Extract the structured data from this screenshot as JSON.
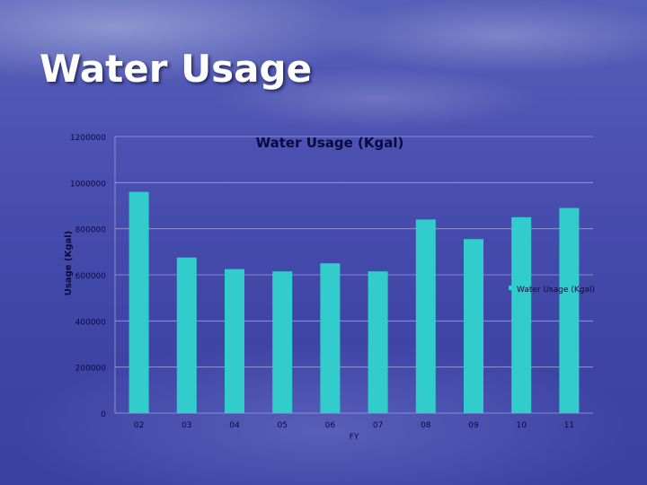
{
  "slide": {
    "title": "Water Usage"
  },
  "colors": {
    "bar": "#33cccc",
    "grid": "#9aa0d8",
    "axis_text": "#0a0a40"
  },
  "chart_data": {
    "type": "bar",
    "title": "Water Usage (Kgal)",
    "xlabel": "FY",
    "ylabel": "Usage (Kgal)",
    "categories": [
      "02",
      "03",
      "04",
      "05",
      "06",
      "07",
      "08",
      "09",
      "10",
      "11"
    ],
    "series": [
      {
        "name": "Water Usage (Kgal)",
        "values": [
          960000,
          675000,
          625000,
          615000,
          650000,
          615000,
          840000,
          755000,
          850000,
          890000
        ]
      }
    ],
    "ylim": [
      0,
      1200000
    ],
    "yticks": [
      "0",
      "200000",
      "400000",
      "600000",
      "800000",
      "1000000",
      "1200000"
    ],
    "grid": true,
    "legend": "right"
  }
}
